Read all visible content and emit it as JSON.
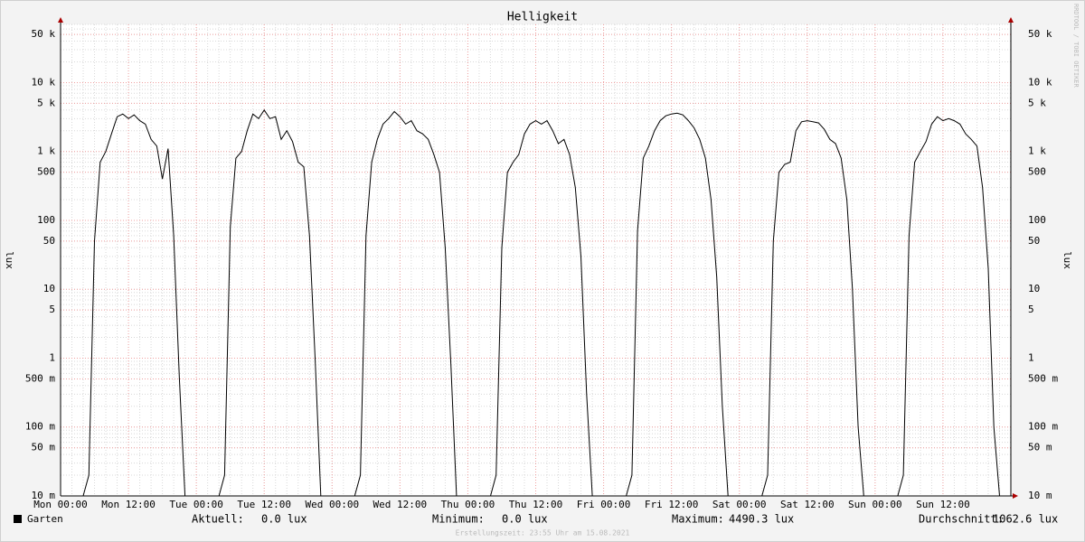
{
  "chart_data": {
    "type": "line",
    "title": "Helligkeit",
    "y_label": "lux",
    "watermark": "RRDTOOL / TOBI OETIKER",
    "footer": "Erstellungszeit: 23:55 Uhr am 15.08.2021",
    "log_y": true,
    "grid": true,
    "xlim": [
      0,
      168
    ],
    "xticks": [
      {
        "value": 0,
        "label": "Mon 00:00"
      },
      {
        "value": 12,
        "label": "Mon 12:00"
      },
      {
        "value": 24,
        "label": "Tue 00:00"
      },
      {
        "value": 36,
        "label": "Tue 12:00"
      },
      {
        "value": 48,
        "label": "Wed 00:00"
      },
      {
        "value": 60,
        "label": "Wed 12:00"
      },
      {
        "value": 72,
        "label": "Thu 00:00"
      },
      {
        "value": 84,
        "label": "Thu 12:00"
      },
      {
        "value": 96,
        "label": "Fri 00:00"
      },
      {
        "value": 108,
        "label": "Fri 12:00"
      },
      {
        "value": 120,
        "label": "Sat 00:00"
      },
      {
        "value": 132,
        "label": "Sat 12:00"
      },
      {
        "value": 144,
        "label": "Sun 00:00"
      },
      {
        "value": 156,
        "label": "Sun 12:00"
      }
    ],
    "ylim": [
      0.01,
      70000
    ],
    "yticks": [
      {
        "value": 0.01,
        "label": "10 m"
      },
      {
        "value": 0.05,
        "label": "50 m"
      },
      {
        "value": 0.1,
        "label": "100 m"
      },
      {
        "value": 0.5,
        "label": "500 m"
      },
      1,
      5,
      10,
      50,
      100,
      500,
      {
        "value": 1000,
        "label": "1 k"
      },
      {
        "value": 5000,
        "label": "5 k"
      },
      {
        "value": 10000,
        "label": "10 k"
      },
      {
        "value": 50000,
        "label": "50 k"
      }
    ],
    "x": [
      0,
      1,
      2,
      3,
      4,
      5,
      6,
      7,
      8,
      9,
      10,
      11,
      12,
      13,
      14,
      15,
      16,
      17,
      18,
      19,
      20,
      21,
      22,
      23,
      24,
      25,
      26,
      27,
      28,
      29,
      30,
      31,
      32,
      33,
      34,
      35,
      36,
      37,
      38,
      39,
      40,
      41,
      42,
      43,
      44,
      45,
      46,
      47,
      48,
      49,
      50,
      51,
      52,
      53,
      54,
      55,
      56,
      57,
      58,
      59,
      60,
      61,
      62,
      63,
      64,
      65,
      66,
      67,
      68,
      69,
      70,
      71,
      72,
      73,
      74,
      75,
      76,
      77,
      78,
      79,
      80,
      81,
      82,
      83,
      84,
      85,
      86,
      87,
      88,
      89,
      90,
      91,
      92,
      93,
      94,
      95,
      96,
      97,
      98,
      99,
      100,
      101,
      102,
      103,
      104,
      105,
      106,
      107,
      108,
      109,
      110,
      111,
      112,
      113,
      114,
      115,
      116,
      117,
      118,
      119,
      120,
      121,
      122,
      123,
      124,
      125,
      126,
      127,
      128,
      129,
      130,
      131,
      132,
      133,
      134,
      135,
      136,
      137,
      138,
      139,
      140,
      141,
      142,
      143,
      144,
      145,
      146,
      147,
      148,
      149,
      150,
      151,
      152,
      153,
      154,
      155,
      156,
      157,
      158,
      159,
      160,
      161,
      162,
      163,
      164,
      165,
      166,
      167
    ],
    "series": [
      {
        "name": "Garten",
        "color": "#000000",
        "values": [
          0,
          0,
          0,
          0,
          0,
          0.02,
          50,
          700,
          1000,
          1800,
          3200,
          3500,
          3000,
          3400,
          2800,
          2500,
          1500,
          1200,
          400,
          1100,
          60,
          0.5,
          0,
          0,
          0,
          0,
          0,
          0,
          0,
          0.02,
          80,
          800,
          1000,
          2000,
          3500,
          3000,
          4000,
          3000,
          3200,
          1500,
          2000,
          1400,
          700,
          600,
          60,
          1,
          0,
          0,
          0,
          0,
          0,
          0,
          0,
          0.02,
          60,
          700,
          1500,
          2500,
          3000,
          3800,
          3200,
          2500,
          2800,
          2000,
          1800,
          1500,
          900,
          500,
          40,
          0.8,
          0,
          0,
          0,
          0,
          0,
          0,
          0,
          0.02,
          40,
          500,
          700,
          900,
          1800,
          2500,
          2800,
          2500,
          2800,
          2000,
          1300,
          1500,
          900,
          300,
          30,
          0.3,
          0,
          0,
          0,
          0,
          0,
          0,
          0,
          0.02,
          70,
          800,
          1200,
          2000,
          2800,
          3300,
          3500,
          3600,
          3400,
          2800,
          2200,
          1500,
          800,
          200,
          15,
          0.2,
          0,
          0,
          0,
          0,
          0,
          0,
          0,
          0.02,
          50,
          500,
          650,
          700,
          2000,
          2700,
          2800,
          2700,
          2600,
          2100,
          1500,
          1300,
          800,
          200,
          10,
          0.1,
          0,
          0,
          0,
          0,
          0,
          0,
          0,
          0.02,
          60,
          700,
          1000,
          1400,
          2500,
          3200,
          2800,
          3000,
          2800,
          2500,
          1800,
          1500,
          1200,
          300,
          20,
          0.1,
          0,
          0
        ]
      }
    ],
    "stats": [
      {
        "label": "Aktuell:",
        "text": "0.0 lux"
      },
      {
        "label": "Minimum:",
        "text": "0.0 lux"
      },
      {
        "label": "Maximum:",
        "text": "4490.3 lux"
      },
      {
        "label": "Durchschnitt:",
        "text": "1062.6 lux"
      }
    ]
  }
}
